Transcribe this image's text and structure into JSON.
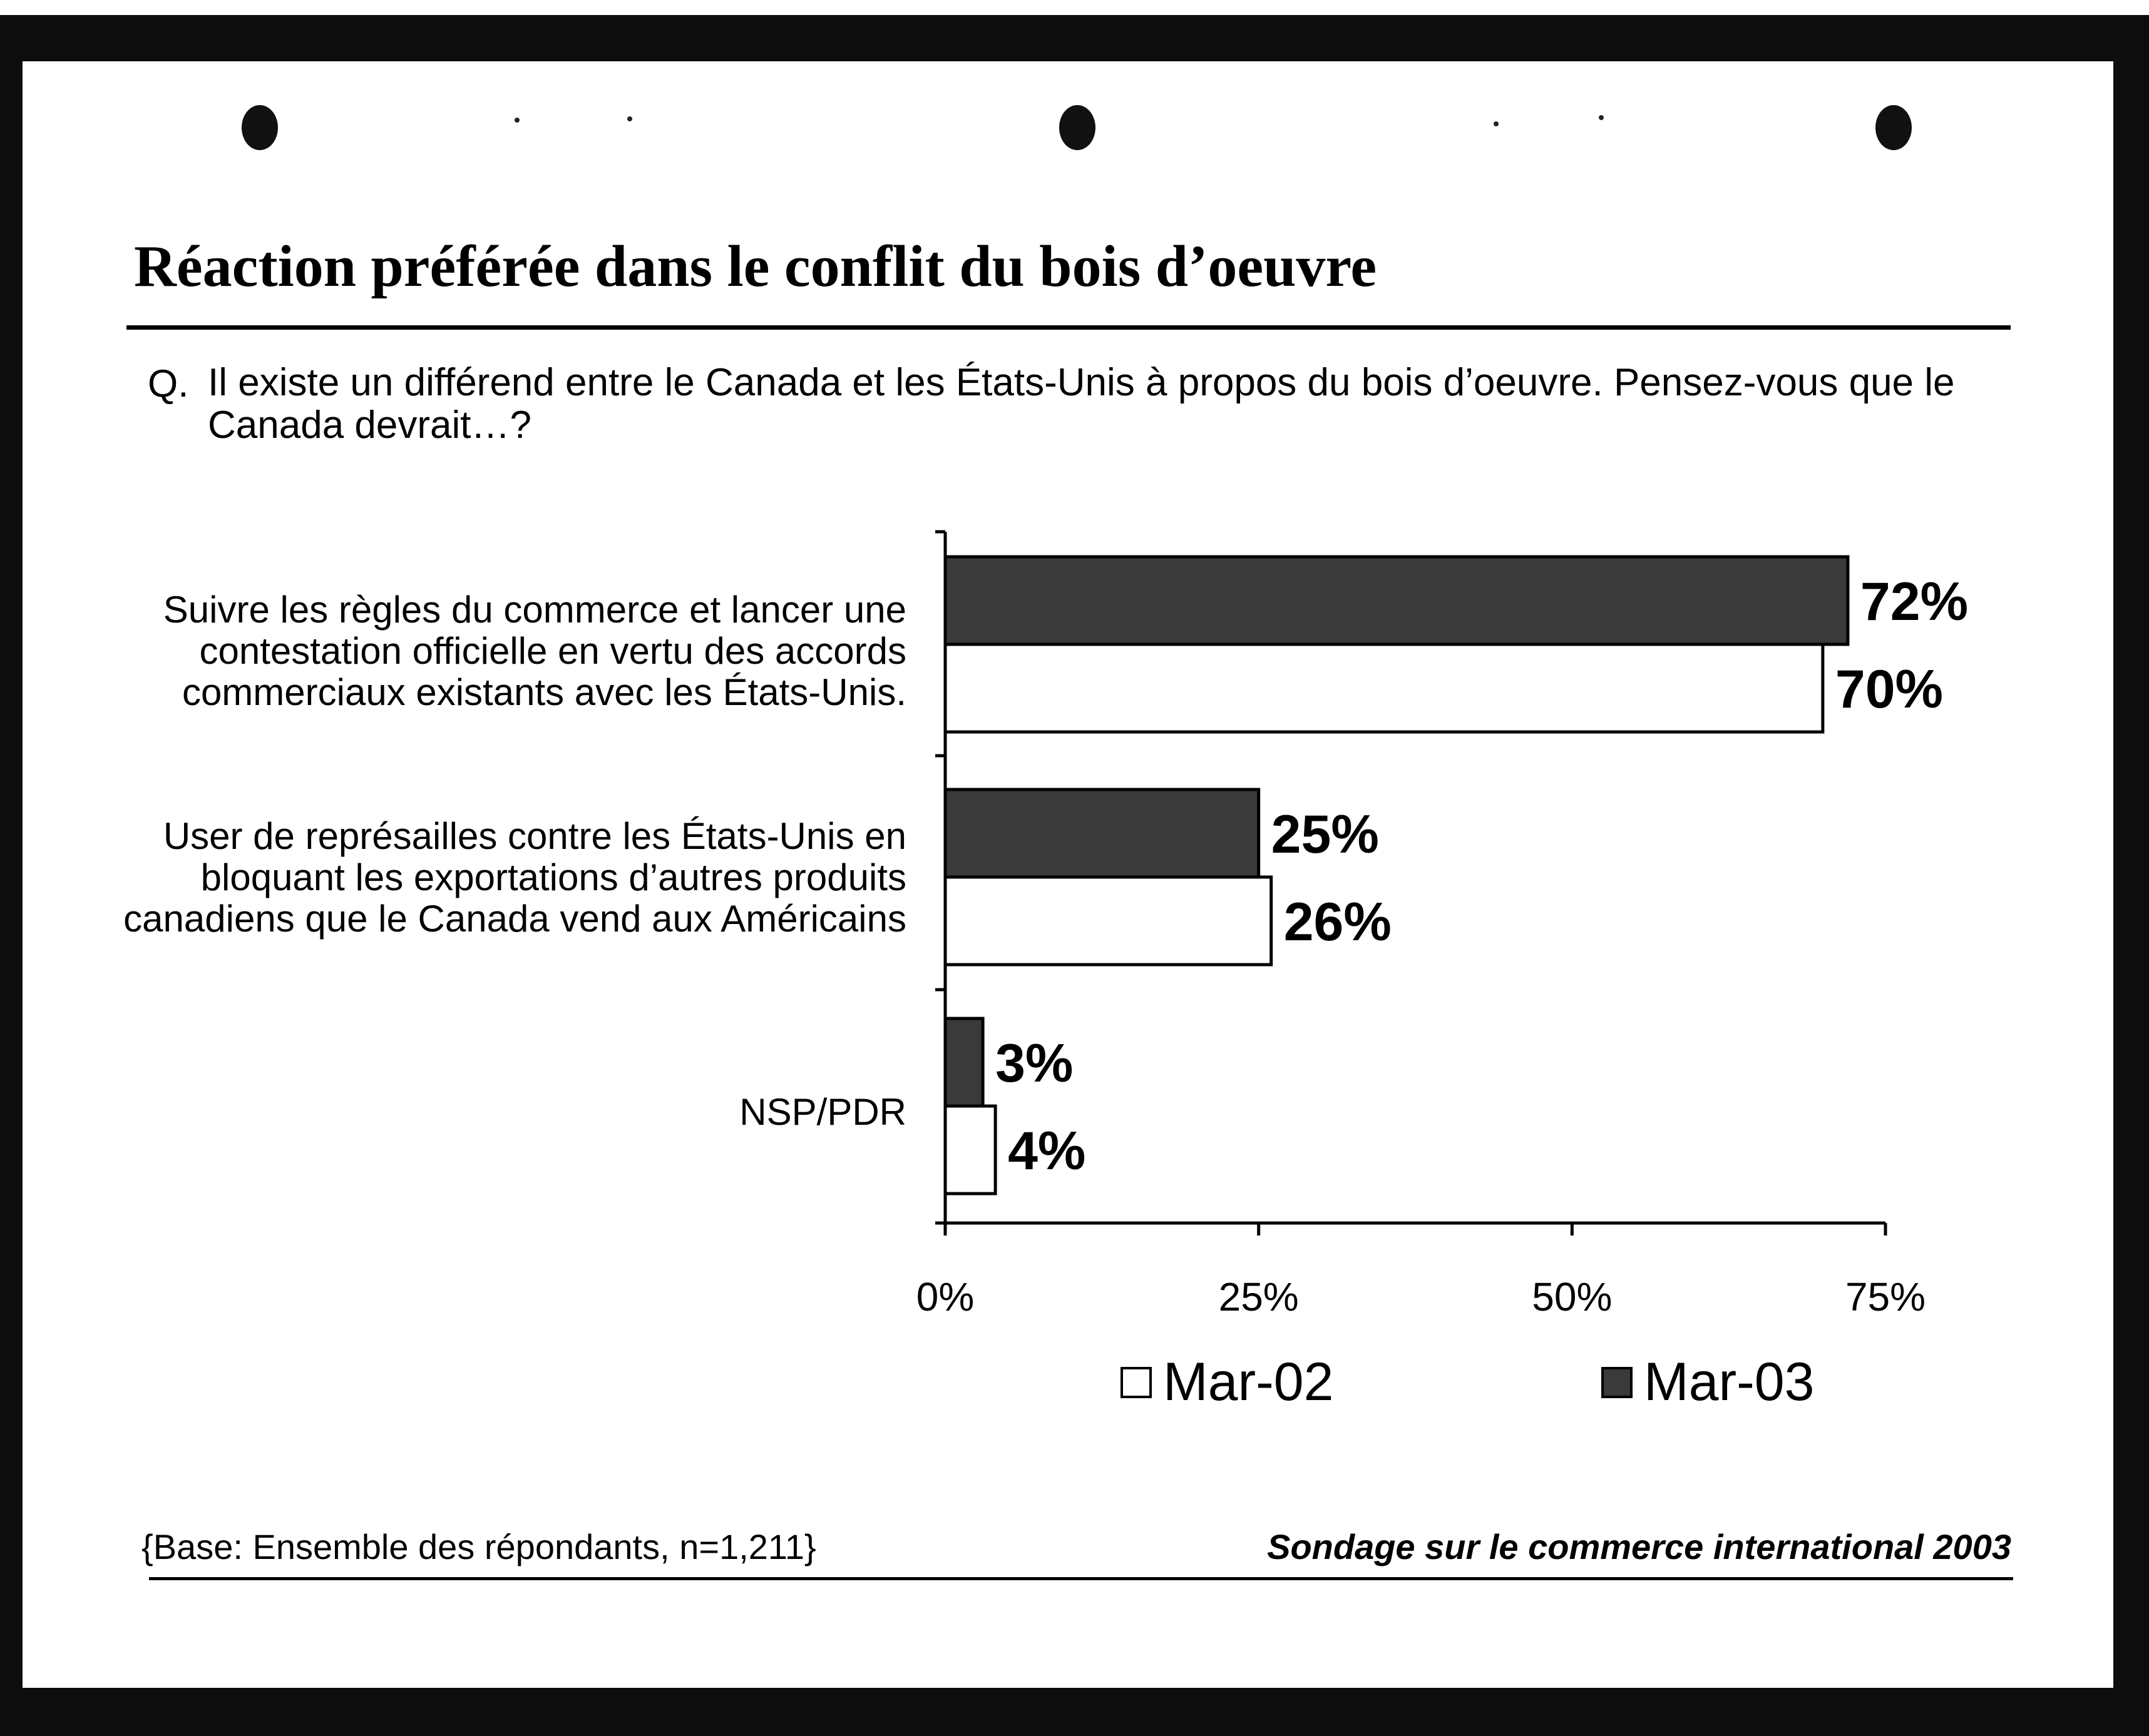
{
  "title": "Réaction préférée dans le conflit du bois d’oeuvre",
  "question": {
    "prefix": "Q.",
    "text": "Il existe un différend entre le Canada et les États-Unis à propos du bois d’oeuvre. Pensez-vous que le Canada devrait…?"
  },
  "chart_data": {
    "type": "bar",
    "orientation": "horizontal",
    "categories": [
      "Suivre les règles du commerce et lancer une contestation officielle en vertu des accords commerciaux existants avec les États-Unis.",
      "User de représailles contre les États-Unis en bloquant les exportations d’autres produits canadiens que le Canada vend aux Américains",
      "NSP/PDR"
    ],
    "series": [
      {
        "name": "Mar-03",
        "values": [
          72,
          25,
          3
        ],
        "labels": [
          "72%",
          "25%",
          "3%"
        ],
        "color": "#3a3a3a"
      },
      {
        "name": "Mar-02",
        "values": [
          70,
          26,
          4
        ],
        "labels": [
          "70%",
          "26%",
          "4%"
        ],
        "color": "#ffffff"
      }
    ],
    "x_ticks": [
      0,
      25,
      50,
      75
    ],
    "x_tick_labels": [
      "0%",
      "25%",
      "50%",
      "75%"
    ],
    "xlim": [
      0,
      75
    ],
    "legend": {
      "position": "bottom",
      "items": [
        "Mar-02",
        "Mar-03"
      ]
    },
    "grid": false
  },
  "footer": {
    "base": "{Base: Ensemble des répondants, n=1,211}",
    "source": "Sondage sur le commerce international 2003"
  }
}
